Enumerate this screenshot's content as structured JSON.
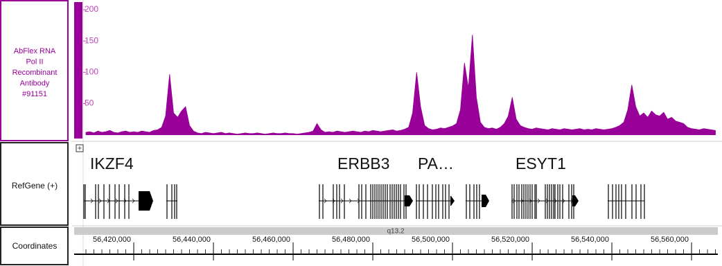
{
  "chart_data": {
    "type": "area",
    "track_label_lines": [
      "AbFlex RNA",
      "Pol II",
      "Recombinant",
      "Antibody",
      "#91151"
    ],
    "color": "#990099",
    "x": [
      56408000,
      56409000,
      56410000,
      56411000,
      56412000,
      56413000,
      56414000,
      56415000,
      56416000,
      56417000,
      56418000,
      56419000,
      56420000,
      56421000,
      56422000,
      56423000,
      56424000,
      56425000,
      56426000,
      56427000,
      56428000,
      56429000,
      56430000,
      56431000,
      56432000,
      56433000,
      56434000,
      56435000,
      56436000,
      56437000,
      56438000,
      56439000,
      56440000,
      56441000,
      56442000,
      56443000,
      56444000,
      56445000,
      56446000,
      56447000,
      56448000,
      56449000,
      56450000,
      56451000,
      56452000,
      56453000,
      56454000,
      56455000,
      56456000,
      56457000,
      56458000,
      56459000,
      56460000,
      56461000,
      56462000,
      56463000,
      56464000,
      56465000,
      56466000,
      56467000,
      56468000,
      56469000,
      56470000,
      56471000,
      56472000,
      56473000,
      56474000,
      56475000,
      56476000,
      56477000,
      56478000,
      56479000,
      56480000,
      56481000,
      56482000,
      56483000,
      56484000,
      56485000,
      56486000,
      56487000,
      56488000,
      56489000,
      56490000,
      56491000,
      56492000,
      56493000,
      56494000,
      56495000,
      56496000,
      56497000,
      56498000,
      56499000,
      56500000,
      56501000,
      56502000,
      56503000,
      56504000,
      56505000,
      56506000,
      56507000,
      56508000,
      56509000,
      56510000,
      56511000,
      56512000,
      56513000,
      56514000,
      56515000,
      56516000,
      56517000,
      56518000,
      56519000,
      56520000,
      56521000,
      56522000,
      56523000,
      56524000,
      56525000,
      56526000,
      56527000,
      56528000,
      56529000,
      56530000,
      56531000,
      56532000,
      56533000,
      56534000,
      56535000,
      56536000,
      56537000,
      56538000,
      56539000,
      56540000,
      56541000,
      56542000,
      56543000,
      56544000,
      56545000,
      56546000,
      56547000,
      56548000,
      56549000,
      56550000,
      56551000,
      56552000,
      56553000,
      56554000,
      56555000,
      56556000,
      56557000,
      56558000,
      56559000,
      56560000,
      56561000,
      56562000,
      56563000,
      56564000,
      56565000,
      56566000
    ],
    "values": [
      4,
      5,
      3,
      6,
      4,
      5,
      7,
      4,
      3,
      5,
      6,
      4,
      5,
      4,
      6,
      5,
      4,
      7,
      8,
      12,
      30,
      97,
      35,
      28,
      38,
      45,
      15,
      6,
      3,
      2,
      4,
      3,
      2,
      3,
      4,
      2,
      3,
      2,
      1,
      2,
      3,
      2,
      2,
      3,
      2,
      1,
      2,
      3,
      2,
      2,
      3,
      2,
      2,
      1,
      2,
      3,
      4,
      6,
      18,
      8,
      4,
      5,
      4,
      6,
      5,
      4,
      5,
      6,
      5,
      4,
      6,
      5,
      7,
      6,
      5,
      6,
      7,
      8,
      6,
      7,
      9,
      12,
      35,
      100,
      45,
      15,
      10,
      8,
      9,
      11,
      10,
      12,
      14,
      18,
      40,
      115,
      75,
      160,
      60,
      20,
      12,
      10,
      11,
      9,
      12,
      18,
      30,
      60,
      25,
      15,
      12,
      10,
      9,
      11,
      10,
      9,
      8,
      10,
      9,
      8,
      10,
      9,
      8,
      9,
      10,
      8,
      9,
      8,
      10,
      9,
      8,
      9,
      10,
      12,
      15,
      20,
      40,
      80,
      45,
      30,
      35,
      28,
      38,
      32,
      30,
      36,
      25,
      28,
      22,
      20,
      18,
      12,
      10,
      9,
      8,
      10,
      9,
      8,
      7
    ],
    "xlim": [
      56407300,
      56566600
    ],
    "ylim": [
      0,
      210
    ],
    "yticks": [
      50,
      100,
      150,
      200
    ],
    "xticks": [
      {
        "value": 56420000,
        "label": "56,420,000"
      },
      {
        "value": 56440000,
        "label": "56,440,000"
      },
      {
        "value": 56460000,
        "label": "56,460,000"
      },
      {
        "value": 56480000,
        "label": "56,480,000"
      },
      {
        "value": 56500000,
        "label": "56,500,000"
      },
      {
        "value": 56520000,
        "label": "56,520,000"
      },
      {
        "value": 56540000,
        "label": "56,540,000"
      },
      {
        "value": 56560000,
        "label": "56,560,000"
      }
    ]
  },
  "gene_track": {
    "label": "RefGene (+)",
    "genes": [
      "IKZF4",
      "ERBB3",
      "PA…",
      "ESYT1"
    ]
  },
  "coordinate_track": {
    "label": "Coordinates",
    "band": "q13.2"
  }
}
